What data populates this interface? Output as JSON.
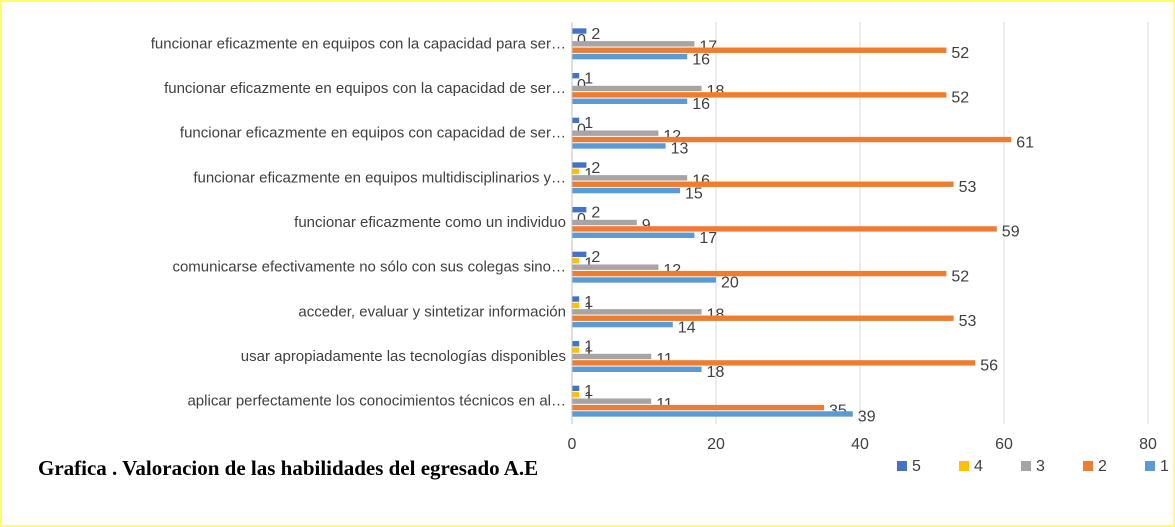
{
  "chart_data": {
    "type": "barh",
    "title": "Grafica . Valoracion de las habilidades del egresado A.E",
    "categories": [
      "funcionar eficazmente en equipos con la capacidad para ser…",
      "funcionar eficazmente en equipos con la capacidad de ser…",
      "funcionar eficazmente en equipos con capacidad de ser…",
      "funcionar eficazmente en equipos multidisciplinarios  y…",
      "funcionar eficazmente como un individuo",
      "comunicarse efectivamente no sólo con sus colegas sino…",
      "acceder, evaluar y sintetizar información",
      "usar apropiadamente las tecnologías disponibles",
      "aplicar  perfectamente los conocimientos técnicos  en al…"
    ],
    "series": [
      {
        "name": "5",
        "color": "#4472c4",
        "values": [
          2,
          1,
          1,
          2,
          2,
          2,
          1,
          1,
          1
        ]
      },
      {
        "name": "4",
        "color": "#ffc000",
        "values": [
          0,
          0,
          0,
          1,
          0,
          1,
          1,
          1,
          1
        ]
      },
      {
        "name": "3",
        "color": "#a5a5a5",
        "values": [
          17,
          18,
          12,
          16,
          9,
          12,
          18,
          11,
          11
        ]
      },
      {
        "name": "2",
        "color": "#ed7d31",
        "values": [
          52,
          52,
          61,
          53,
          59,
          52,
          53,
          56,
          35
        ]
      },
      {
        "name": "1",
        "color": "#5b9bd5",
        "values": [
          16,
          16,
          13,
          15,
          17,
          20,
          14,
          18,
          39
        ]
      }
    ],
    "xlim": [
      0,
      80
    ],
    "xticks": [
      0,
      20,
      40,
      60,
      80
    ],
    "grid": true,
    "legend": "bottom-right"
  }
}
